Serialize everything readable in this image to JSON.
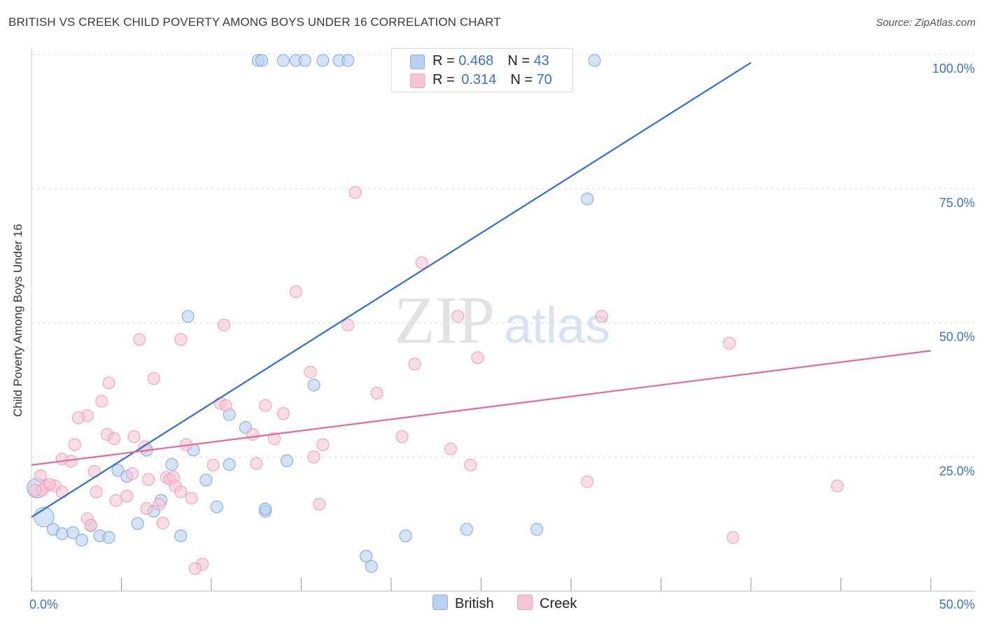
{
  "title": "BRITISH VS CREEK CHILD POVERTY AMONG BOYS UNDER 16 CORRELATION CHART",
  "source": "Source: ZipAtlas.com",
  "watermark": {
    "zip": "ZIP",
    "atlas": "atlas"
  },
  "colors": {
    "british_fill": "#b8d1f2",
    "british_stroke": "#7aa6e0",
    "british_line": "#2f6fd0",
    "creek_fill": "#f7c4d3",
    "creek_stroke": "#ee9db6",
    "creek_line": "#e46a94",
    "tick_label": "#3a73c8",
    "grid": "#dcdcdc"
  },
  "legend": {
    "british": {
      "r_label": "R = ",
      "r_value": "0.468",
      "n_label": "N = ",
      "n_value": "43"
    },
    "creek": {
      "r_label": "R = ",
      "r_value": "0.314",
      "n_label": "N = ",
      "n_value": "70"
    }
  },
  "chart_data": {
    "type": "scatter",
    "title": "BRITISH VS CREEK CHILD POVERTY AMONG BOYS UNDER 16 CORRELATION CHART",
    "xlabel": "",
    "ylabel": "Child Poverty Among Boys Under 16",
    "xlim": [
      0,
      50
    ],
    "ylim": [
      0,
      100
    ],
    "x_tick_labels": [
      "0.0%",
      "50.0%"
    ],
    "y_ticks": [
      25,
      50,
      75,
      100
    ],
    "y_tick_labels": [
      "25.0%",
      "50.0%",
      "75.0%",
      "100.0%"
    ],
    "grid": true,
    "legend_position": "top-center",
    "series": [
      {
        "name": "British",
        "R": 0.468,
        "N": 43,
        "trend": {
          "x": [
            0,
            40
          ],
          "y": [
            13.8,
            98.5
          ]
        },
        "points": [
          {
            "x": 12.6,
            "y": 98.9
          },
          {
            "x": 12.8,
            "y": 98.9
          },
          {
            "x": 14.0,
            "y": 98.9
          },
          {
            "x": 14.7,
            "y": 98.9
          },
          {
            "x": 15.2,
            "y": 98.9
          },
          {
            "x": 16.2,
            "y": 98.9
          },
          {
            "x": 17.1,
            "y": 98.9
          },
          {
            "x": 17.6,
            "y": 98.9
          },
          {
            "x": 31.3,
            "y": 98.9
          },
          {
            "x": 30.9,
            "y": 73.1
          },
          {
            "x": 8.7,
            "y": 51.2
          },
          {
            "x": 15.7,
            "y": 38.4
          },
          {
            "x": 11.0,
            "y": 32.9
          },
          {
            "x": 11.9,
            "y": 30.5
          },
          {
            "x": 6.4,
            "y": 26.3
          },
          {
            "x": 9.0,
            "y": 26.3
          },
          {
            "x": 7.8,
            "y": 23.6
          },
          {
            "x": 11.0,
            "y": 23.6
          },
          {
            "x": 14.2,
            "y": 24.3
          },
          {
            "x": 4.8,
            "y": 22.5
          },
          {
            "x": 5.3,
            "y": 21.4
          },
          {
            "x": 9.7,
            "y": 20.7
          },
          {
            "x": 7.2,
            "y": 16.9
          },
          {
            "x": 6.8,
            "y": 14.9
          },
          {
            "x": 10.3,
            "y": 15.7
          },
          {
            "x": 13.0,
            "y": 14.9
          },
          {
            "x": 0.3,
            "y": 19.2,
            "big": true
          },
          {
            "x": 0.7,
            "y": 13.8,
            "big": true
          },
          {
            "x": 1.2,
            "y": 11.5
          },
          {
            "x": 1.7,
            "y": 10.7
          },
          {
            "x": 2.3,
            "y": 10.9
          },
          {
            "x": 2.8,
            "y": 9.5
          },
          {
            "x": 3.3,
            "y": 12.2
          },
          {
            "x": 3.8,
            "y": 10.3
          },
          {
            "x": 4.3,
            "y": 10.0
          },
          {
            "x": 5.9,
            "y": 12.6
          },
          {
            "x": 8.3,
            "y": 10.3
          },
          {
            "x": 20.8,
            "y": 10.3
          },
          {
            "x": 24.2,
            "y": 11.5
          },
          {
            "x": 28.1,
            "y": 11.5
          },
          {
            "x": 18.6,
            "y": 6.5
          },
          {
            "x": 18.9,
            "y": 4.6
          },
          {
            "x": 13.0,
            "y": 15.3
          }
        ]
      },
      {
        "name": "Creek",
        "R": 0.314,
        "N": 70,
        "trend": {
          "x": [
            0,
            50
          ],
          "y": [
            23.5,
            44.8
          ]
        },
        "points": [
          {
            "x": 18.0,
            "y": 74.3
          },
          {
            "x": 21.7,
            "y": 61.2
          },
          {
            "x": 14.7,
            "y": 55.8
          },
          {
            "x": 23.7,
            "y": 51.2
          },
          {
            "x": 31.7,
            "y": 51.2
          },
          {
            "x": 10.7,
            "y": 49.6
          },
          {
            "x": 17.6,
            "y": 49.6
          },
          {
            "x": 6.0,
            "y": 46.9
          },
          {
            "x": 8.3,
            "y": 46.9
          },
          {
            "x": 38.8,
            "y": 46.2
          },
          {
            "x": 24.8,
            "y": 43.5
          },
          {
            "x": 21.3,
            "y": 42.3
          },
          {
            "x": 15.5,
            "y": 40.8
          },
          {
            "x": 6.8,
            "y": 39.6
          },
          {
            "x": 4.3,
            "y": 38.8
          },
          {
            "x": 19.2,
            "y": 36.9
          },
          {
            "x": 3.9,
            "y": 35.4
          },
          {
            "x": 10.5,
            "y": 35.0
          },
          {
            "x": 10.8,
            "y": 34.6
          },
          {
            "x": 13.0,
            "y": 34.6
          },
          {
            "x": 14.0,
            "y": 33.1
          },
          {
            "x": 3.1,
            "y": 32.7
          },
          {
            "x": 2.6,
            "y": 32.3
          },
          {
            "x": 4.2,
            "y": 29.2
          },
          {
            "x": 5.7,
            "y": 28.8
          },
          {
            "x": 4.6,
            "y": 28.4
          },
          {
            "x": 12.3,
            "y": 29.2
          },
          {
            "x": 13.5,
            "y": 28.4
          },
          {
            "x": 20.6,
            "y": 28.8
          },
          {
            "x": 16.2,
            "y": 27.3
          },
          {
            "x": 2.4,
            "y": 27.3
          },
          {
            "x": 8.6,
            "y": 27.3
          },
          {
            "x": 23.3,
            "y": 26.5
          },
          {
            "x": 6.3,
            "y": 26.9
          },
          {
            "x": 1.7,
            "y": 24.6
          },
          {
            "x": 2.2,
            "y": 24.2
          },
          {
            "x": 15.7,
            "y": 25.0
          },
          {
            "x": 12.5,
            "y": 23.8
          },
          {
            "x": 10.1,
            "y": 23.5
          },
          {
            "x": 24.4,
            "y": 23.5
          },
          {
            "x": 3.5,
            "y": 22.3
          },
          {
            "x": 5.6,
            "y": 21.9
          },
          {
            "x": 0.5,
            "y": 21.5
          },
          {
            "x": 6.5,
            "y": 20.8
          },
          {
            "x": 7.5,
            "y": 21.2
          },
          {
            "x": 7.7,
            "y": 20.8
          },
          {
            "x": 7.9,
            "y": 21.2
          },
          {
            "x": 30.9,
            "y": 20.4
          },
          {
            "x": 0.8,
            "y": 19.6
          },
          {
            "x": 1.3,
            "y": 19.6
          },
          {
            "x": 8.0,
            "y": 19.6
          },
          {
            "x": 0.6,
            "y": 18.8
          },
          {
            "x": 1.7,
            "y": 18.5
          },
          {
            "x": 8.3,
            "y": 18.5
          },
          {
            "x": 3.6,
            "y": 18.5
          },
          {
            "x": 5.3,
            "y": 17.7
          },
          {
            "x": 4.7,
            "y": 16.9
          },
          {
            "x": 8.9,
            "y": 17.3
          },
          {
            "x": 7.1,
            "y": 16.2
          },
          {
            "x": 6.4,
            "y": 15.4
          },
          {
            "x": 16.0,
            "y": 16.2
          },
          {
            "x": 44.8,
            "y": 19.6
          },
          {
            "x": 3.1,
            "y": 13.5
          },
          {
            "x": 7.3,
            "y": 12.7
          },
          {
            "x": 3.3,
            "y": 12.3
          },
          {
            "x": 39.0,
            "y": 10.0
          },
          {
            "x": 9.5,
            "y": 5.0
          },
          {
            "x": 9.1,
            "y": 4.2
          },
          {
            "x": 0.2,
            "y": 18.8
          },
          {
            "x": 1.0,
            "y": 19.9
          }
        ]
      }
    ]
  }
}
